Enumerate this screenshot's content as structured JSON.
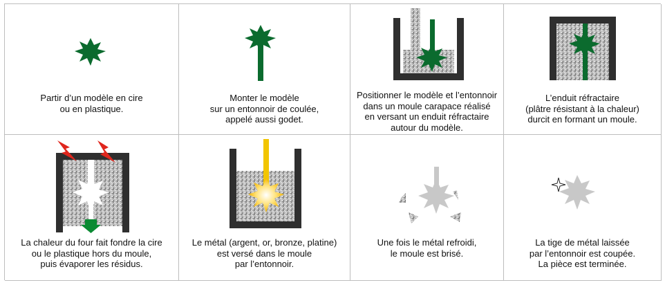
{
  "colors": {
    "green": "#0b6b2e",
    "frame": "#2f2f2f",
    "plaster": "#b9b9b9",
    "fire": "#e0261d",
    "metal": "#f2c500",
    "metal_cool": "#c8c8c8"
  },
  "steps": [
    {
      "caption": [
        "Partir d’un modèle en cire",
        "ou en plastique."
      ]
    },
    {
      "caption": [
        "Monter le modèle",
        "sur un entonnoir de coulée,",
        "appelé aussi godet."
      ]
    },
    {
      "caption": [
        "Positionner le modèle et l’entonnoir",
        "dans un moule carapace réalisé",
        "en versant un enduit réfractaire",
        "autour du modèle."
      ]
    },
    {
      "caption": [
        "L’enduit réfractaire",
        "(plâtre résistant à la chaleur)",
        "durcit en formant un moule."
      ]
    },
    {
      "caption": [
        "La chaleur du four fait fondre la cire",
        "ou le plastique hors du moule,",
        "puis évaporer les résidus."
      ]
    },
    {
      "caption": [
        "Le métal (argent, or, bronze, platine)",
        "est versé dans le moule",
        "par l’entonnoir."
      ]
    },
    {
      "caption": [
        "Une fois le métal refroidi,",
        "le moule est brisé."
      ]
    },
    {
      "caption": [
        "La tige de métal laissée",
        "par l’entonnoir est coupée.",
        "La pièce est terminée."
      ]
    }
  ]
}
